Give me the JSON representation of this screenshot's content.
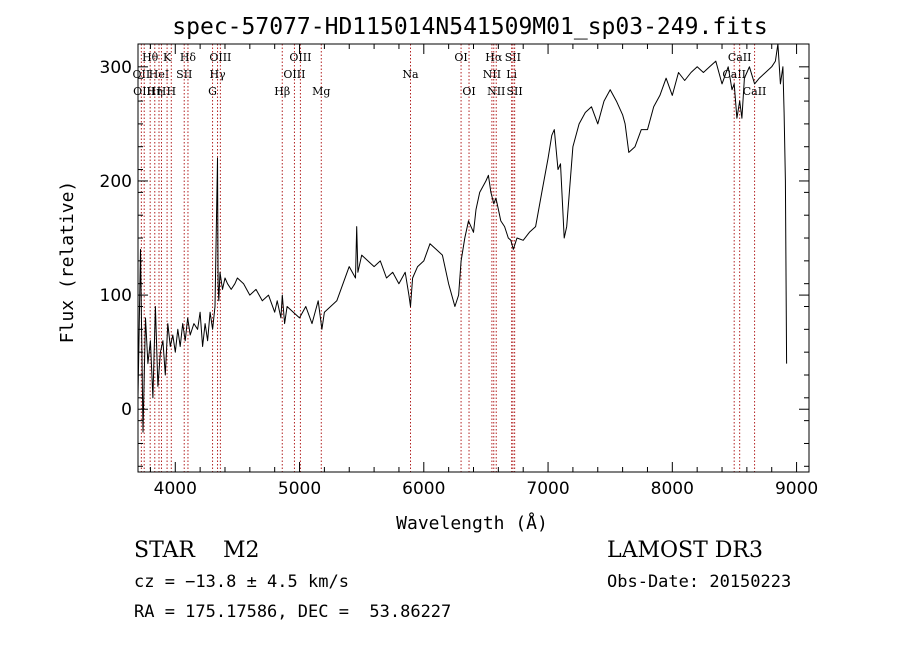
{
  "chart_data": {
    "type": "line",
    "title": "spec-57077-HD115014N541509M01_sp03-249.fits",
    "xlabel": "Wavelength (Å)",
    "ylabel": "Flux (relative)",
    "xlim": [
      3700,
      9100
    ],
    "ylim": [
      -55,
      320
    ],
    "xticks": [
      4000,
      5000,
      6000,
      7000,
      8000,
      9000
    ],
    "yticks": [
      0,
      100,
      200,
      300
    ],
    "grid": false,
    "series": [
      {
        "x": [
          3700,
          3720,
          3740,
          3760,
          3780,
          3800,
          3820,
          3840,
          3860,
          3880,
          3900,
          3920,
          3940,
          3960,
          3980,
          4000,
          4020,
          4040,
          4060,
          4080,
          4100,
          4120,
          4150,
          4180,
          4200,
          4220,
          4240,
          4260,
          4280,
          4300,
          4320,
          4340,
          4345,
          4350,
          4360,
          4380,
          4400,
          4420,
          4450,
          4480,
          4500,
          4550,
          4600,
          4650,
          4700,
          4750,
          4800,
          4820,
          4850,
          4861,
          4880,
          4900,
          4950,
          5000,
          5050,
          5100,
          5150,
          5180,
          5200,
          5250,
          5300,
          5350,
          5400,
          5450,
          5460,
          5470,
          5500,
          5550,
          5600,
          5650,
          5700,
          5750,
          5800,
          5850,
          5880,
          5893,
          5910,
          5950,
          6000,
          6050,
          6100,
          6150,
          6200,
          6250,
          6280,
          6300,
          6330,
          6360,
          6400,
          6420,
          6450,
          6500,
          6520,
          6540,
          6563,
          6580,
          6600,
          6620,
          6650,
          6680,
          6700,
          6720,
          6750,
          6800,
          6850,
          6900,
          6950,
          7000,
          7030,
          7050,
          7080,
          7100,
          7130,
          7150,
          7200,
          7250,
          7300,
          7350,
          7400,
          7450,
          7500,
          7550,
          7600,
          7620,
          7650,
          7700,
          7750,
          7800,
          7850,
          7900,
          7950,
          8000,
          8050,
          8100,
          8150,
          8200,
          8250,
          8300,
          8350,
          8400,
          8450,
          8480,
          8498,
          8520,
          8542,
          8560,
          8580,
          8600,
          8620,
          8662,
          8700,
          8750,
          8800,
          8830,
          8850,
          8870,
          8890,
          8900,
          8910,
          8920
        ],
        "values": [
          10,
          140,
          -20,
          80,
          40,
          60,
          10,
          90,
          20,
          50,
          60,
          30,
          75,
          55,
          65,
          50,
          70,
          55,
          75,
          60,
          80,
          65,
          75,
          70,
          85,
          55,
          75,
          60,
          85,
          70,
          90,
          220,
          110,
          95,
          120,
          105,
          115,
          110,
          105,
          110,
          115,
          110,
          100,
          105,
          95,
          100,
          85,
          95,
          80,
          100,
          75,
          90,
          85,
          80,
          90,
          75,
          95,
          70,
          85,
          90,
          95,
          110,
          125,
          115,
          160,
          120,
          135,
          130,
          125,
          130,
          115,
          120,
          110,
          120,
          100,
          90,
          115,
          125,
          130,
          145,
          140,
          135,
          110,
          90,
          100,
          130,
          150,
          165,
          155,
          175,
          190,
          200,
          205,
          190,
          180,
          185,
          175,
          165,
          160,
          150,
          148,
          140,
          150,
          148,
          155,
          160,
          190,
          220,
          240,
          245,
          210,
          215,
          150,
          160,
          230,
          250,
          260,
          265,
          250,
          270,
          280,
          270,
          258,
          250,
          225,
          230,
          245,
          245,
          265,
          275,
          290,
          275,
          295,
          288,
          295,
          300,
          295,
          300,
          305,
          285,
          300,
          280,
          285,
          255,
          270,
          255,
          290,
          295,
          300,
          285,
          290,
          295,
          300,
          305,
          320,
          285,
          300,
          260,
          200,
          40
        ]
      }
    ],
    "lines": [
      {
        "wl": 3727,
        "labels": [
          "OII"
        ],
        "rows": [
          1
        ]
      },
      {
        "wl": 3750,
        "labels": [
          "OIII"
        ],
        "rows": [
          2
        ]
      },
      {
        "wl": 3798,
        "labels": [
          "Hθ"
        ],
        "rows": [
          0
        ]
      },
      {
        "wl": 3835,
        "labels": [
          "Hη"
        ],
        "rows": [
          2
        ]
      },
      {
        "wl": 3869,
        "labels": [
          "HeI"
        ],
        "rows": [
          1
        ]
      },
      {
        "wl": 3889,
        "labels": [
          "H"
        ],
        "rows": [
          2
        ]
      },
      {
        "wl": 3934,
        "labels": [
          "K"
        ],
        "rows": [
          0
        ]
      },
      {
        "wl": 3968,
        "labels": [
          "H"
        ],
        "rows": [
          2
        ]
      },
      {
        "wl": 4072,
        "labels": [
          "SII"
        ],
        "rows": [
          1
        ]
      },
      {
        "wl": 4102,
        "labels": [
          "Hδ"
        ],
        "rows": [
          0
        ]
      },
      {
        "wl": 4300,
        "labels": [
          "G"
        ],
        "rows": [
          2
        ]
      },
      {
        "wl": 4340,
        "labels": [
          "Hγ"
        ],
        "rows": [
          1
        ]
      },
      {
        "wl": 4363,
        "labels": [
          "OIII"
        ],
        "rows": [
          0
        ]
      },
      {
        "wl": 4861,
        "labels": [
          "Hβ"
        ],
        "rows": [
          2
        ]
      },
      {
        "wl": 4959,
        "labels": [
          "OIII"
        ],
        "rows": [
          1
        ]
      },
      {
        "wl": 5007,
        "labels": [
          "OIII"
        ],
        "rows": [
          0
        ]
      },
      {
        "wl": 5175,
        "labels": [
          "Mg"
        ],
        "rows": [
          2
        ]
      },
      {
        "wl": 5893,
        "labels": [
          "Na"
        ],
        "rows": [
          1
        ]
      },
      {
        "wl": 6300,
        "labels": [
          "OI"
        ],
        "rows": [
          0
        ]
      },
      {
        "wl": 6364,
        "labels": [
          "OI"
        ],
        "rows": [
          2
        ]
      },
      {
        "wl": 6548,
        "labels": [
          "NII"
        ],
        "rows": [
          1
        ]
      },
      {
        "wl": 6563,
        "labels": [
          "Hα"
        ],
        "rows": [
          0
        ]
      },
      {
        "wl": 6583,
        "labels": [
          "NII"
        ],
        "rows": [
          2
        ]
      },
      {
        "wl": 6707,
        "labels": [
          "Li"
        ],
        "rows": [
          1
        ]
      },
      {
        "wl": 6717,
        "labels": [
          "SII"
        ],
        "rows": [
          0
        ]
      },
      {
        "wl": 6731,
        "labels": [
          "SII"
        ],
        "rows": [
          2
        ]
      },
      {
        "wl": 8498,
        "labels": [
          "CaII"
        ],
        "rows": [
          1
        ]
      },
      {
        "wl": 8542,
        "labels": [
          "CaII"
        ],
        "rows": [
          0
        ]
      },
      {
        "wl": 8662,
        "labels": [
          "CaII"
        ],
        "rows": [
          2
        ]
      }
    ]
  },
  "info": {
    "class_line": "STAR    M2",
    "survey": "LAMOST DR3",
    "cz": "cz = −13.8 ± 4.5 km/s",
    "obs_date": "Obs-Date: 20150223",
    "radec": "RA = 175.17586, DEC =  53.86227"
  },
  "colors": {
    "spectrum": "#000000",
    "line_markers": "#b22222",
    "axes": "#000000"
  }
}
